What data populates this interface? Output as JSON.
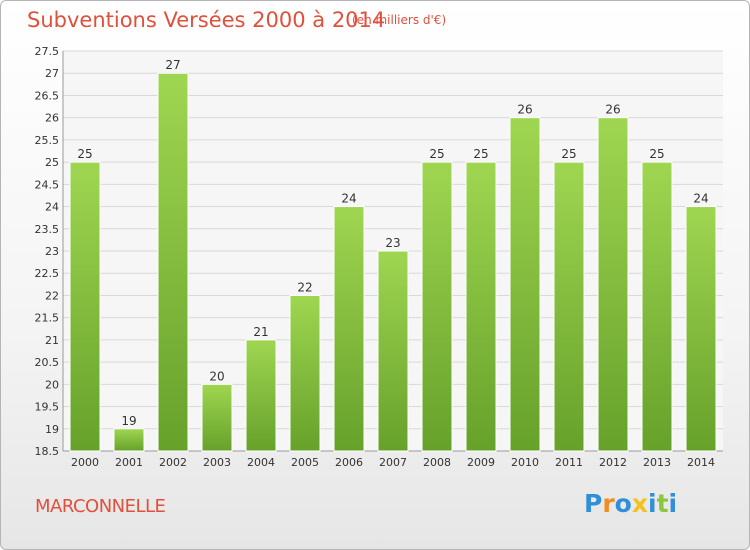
{
  "chart_data": {
    "type": "bar",
    "title": "Subventions Versées 2000 à 2014",
    "subtitle": "(en milliers d'€)",
    "categories": [
      "2000",
      "2001",
      "2002",
      "2003",
      "2004",
      "2005",
      "2006",
      "2007",
      "2008",
      "2009",
      "2010",
      "2011",
      "2012",
      "2013",
      "2014"
    ],
    "values": [
      25,
      19,
      27,
      20,
      21,
      22,
      24,
      23,
      25,
      25,
      26,
      25,
      26,
      25,
      24
    ],
    "ylim": [
      18.5,
      27.5
    ],
    "yticks": [
      "18.5",
      "19",
      "19.5",
      "20",
      "20.5",
      "21",
      "21.5",
      "22",
      "22.5",
      "23",
      "23.5",
      "24",
      "24.5",
      "25",
      "25.5",
      "26",
      "26.5",
      "27",
      "27.5"
    ],
    "grid": true,
    "bar_color": "#8cc63f"
  },
  "commune": "MARCONNELLE",
  "logo": {
    "letters": [
      "P",
      "r",
      "o",
      "x",
      "i",
      "t",
      "i"
    ],
    "colors": [
      "#2f8fd8",
      "#f28c1e",
      "#2f8fd8",
      "#f2c31e",
      "#2f8fd8",
      "#8cc63f",
      "#2f8fd8"
    ]
  }
}
